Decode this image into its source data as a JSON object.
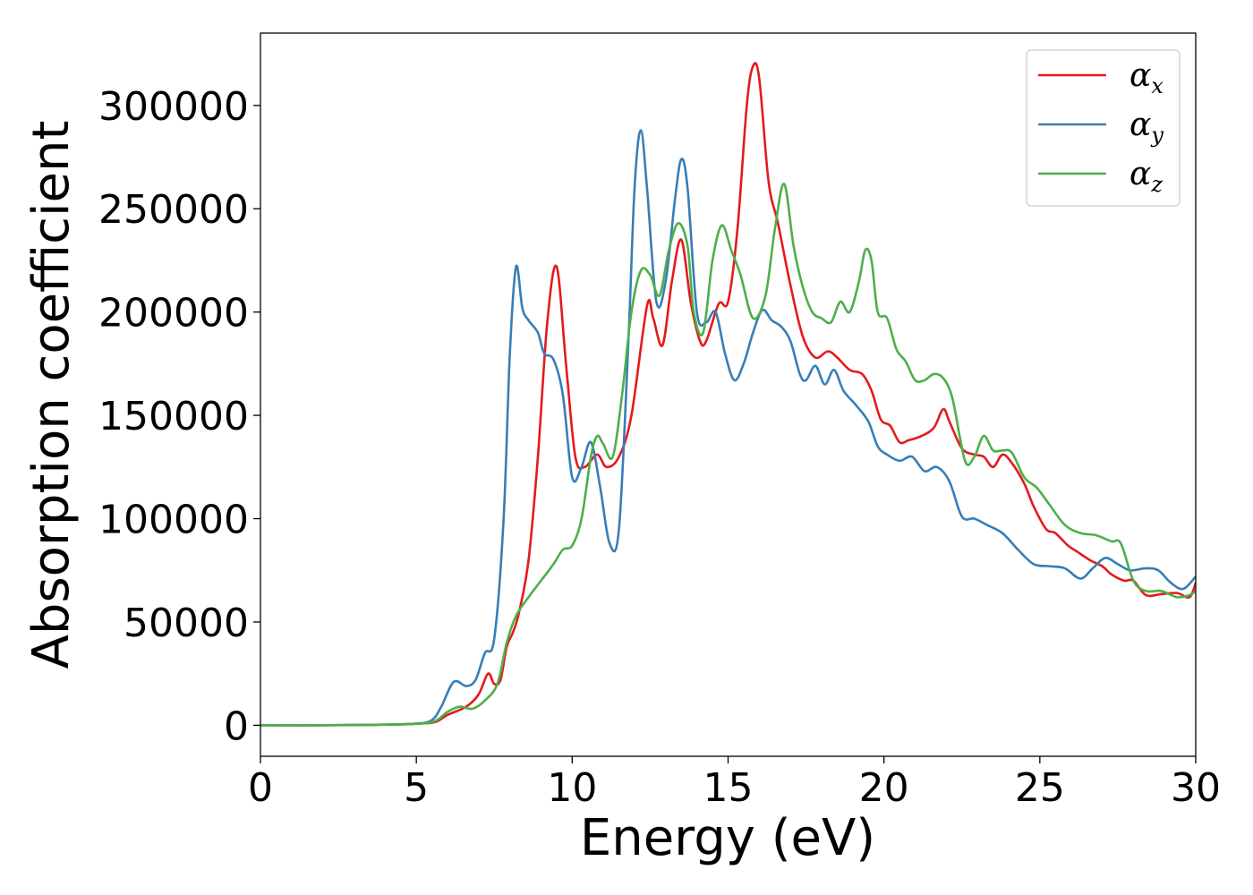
{
  "chart_data": {
    "type": "line",
    "xlabel": "Energy (eV)",
    "ylabel": "Absorption coefficient",
    "xlim": [
      0,
      30
    ],
    "ylim": [
      -15000,
      335000
    ],
    "xticks": [
      0,
      5,
      10,
      15,
      20,
      25,
      30
    ],
    "yticks": [
      0,
      50000,
      100000,
      150000,
      200000,
      250000,
      300000
    ],
    "grid": false,
    "legend_position": "top-right",
    "series": [
      {
        "name": "αx",
        "symbol": "α",
        "subscript": "x",
        "color": "#e41a1c",
        "x": [
          0,
          2,
          4,
          5,
          5.6,
          6,
          6.6,
          7.0,
          7.3,
          7.5,
          7.7,
          7.9,
          8.1,
          8.3,
          8.6,
          8.9,
          9.2,
          9.5,
          9.8,
          10.1,
          10.4,
          10.8,
          11.1,
          11.5,
          11.9,
          12.4,
          12.6,
          12.9,
          13.2,
          13.5,
          13.8,
          14.1,
          14.3,
          14.7,
          15.0,
          15.3,
          15.6,
          15.8,
          16.0,
          16.3,
          16.6,
          17.0,
          17.4,
          17.8,
          18.2,
          18.5,
          18.9,
          19.3,
          19.6,
          19.9,
          20.2,
          20.5,
          20.8,
          21.2,
          21.6,
          21.9,
          22.1,
          22.5,
          22.9,
          23.2,
          23.5,
          23.8,
          24.1,
          24.5,
          24.8,
          25.2,
          25.5,
          25.9,
          26.2,
          26.6,
          27.0,
          27.3,
          27.7,
          28.0,
          28.4,
          28.9,
          29.4,
          29.8,
          30
        ],
        "y": [
          0,
          0,
          300,
          800,
          1500,
          5000,
          9000,
          15000,
          25000,
          20000,
          22000,
          38000,
          45000,
          55000,
          80000,
          130000,
          195000,
          222000,
          175000,
          130000,
          125000,
          131000,
          125000,
          130000,
          150000,
          203000,
          197000,
          184000,
          215000,
          235000,
          205000,
          186000,
          186000,
          204000,
          205000,
          240000,
          300000,
          319000,
          313000,
          263000,
          243000,
          213000,
          188000,
          178000,
          181000,
          178000,
          172000,
          170000,
          162000,
          148000,
          145000,
          137000,
          138000,
          140000,
          144000,
          153000,
          147000,
          134000,
          131000,
          130000,
          125000,
          131000,
          127000,
          117000,
          106000,
          95000,
          93000,
          87000,
          84000,
          80000,
          77000,
          73000,
          70000,
          70000,
          63000,
          63500,
          64000,
          62000,
          69000
        ]
      },
      {
        "name": "αy",
        "symbol": "α",
        "subscript": "y",
        "color": "#377eb8",
        "x": [
          0,
          2,
          4,
          5,
          5.5,
          5.8,
          6.2,
          6.6,
          6.9,
          7.2,
          7.5,
          7.8,
          8.0,
          8.2,
          8.4,
          8.6,
          8.9,
          9.1,
          9.4,
          9.7,
          10.0,
          10.3,
          10.6,
          10.9,
          11.2,
          11.5,
          11.8,
          12.0,
          12.2,
          12.4,
          12.7,
          13.0,
          13.3,
          13.5,
          13.7,
          14.0,
          14.3,
          14.6,
          14.9,
          15.2,
          15.5,
          15.8,
          16.1,
          16.4,
          16.7,
          17.0,
          17.3,
          17.5,
          17.8,
          18.1,
          18.4,
          18.7,
          19.1,
          19.5,
          19.8,
          20.1,
          20.5,
          20.9,
          21.3,
          21.7,
          22.1,
          22.5,
          22.9,
          23.3,
          23.8,
          24.3,
          24.8,
          25.3,
          25.8,
          26.3,
          26.7,
          27.1,
          27.5,
          27.9,
          28.4,
          28.8,
          29.2,
          29.6,
          30
        ],
        "y": [
          0,
          0,
          300,
          800,
          2500,
          9000,
          21000,
          19000,
          22000,
          35000,
          42000,
          100000,
          180000,
          222000,
          202000,
          196000,
          190000,
          180000,
          177000,
          160000,
          120000,
          125000,
          137000,
          115000,
          88000,
          95000,
          185000,
          260000,
          288000,
          260000,
          205000,
          215000,
          255000,
          274000,
          260000,
          200000,
          195000,
          200000,
          180000,
          167000,
          175000,
          190000,
          201000,
          196000,
          193000,
          186000,
          170000,
          167000,
          174000,
          165000,
          172000,
          162000,
          155000,
          147000,
          135000,
          131000,
          128000,
          130000,
          123000,
          125000,
          118000,
          101000,
          100000,
          97000,
          93000,
          85000,
          78000,
          77000,
          76000,
          71000,
          76000,
          81000,
          78000,
          75000,
          76000,
          75000,
          69000,
          66000,
          72000
        ]
      },
      {
        "name": "αz",
        "symbol": "α",
        "subscript": "z",
        "color": "#4daf4a",
        "x": [
          0,
          2,
          4,
          5,
          5.6,
          6.0,
          6.4,
          6.8,
          7.2,
          7.6,
          7.9,
          8.2,
          8.6,
          9.0,
          9.4,
          9.7,
          10.0,
          10.3,
          10.6,
          10.8,
          11.0,
          11.3,
          11.6,
          11.9,
          12.2,
          12.5,
          12.8,
          13.1,
          13.4,
          13.7,
          13.9,
          14.2,
          14.5,
          14.8,
          15.1,
          15.4,
          15.8,
          16.2,
          16.5,
          16.8,
          17.1,
          17.4,
          17.7,
          18.0,
          18.3,
          18.6,
          18.9,
          19.2,
          19.4,
          19.6,
          19.8,
          20.1,
          20.4,
          20.7,
          21.0,
          21.3,
          21.6,
          21.9,
          22.2,
          22.6,
          22.9,
          23.2,
          23.5,
          23.8,
          24.1,
          24.5,
          24.9,
          25.3,
          25.8,
          26.3,
          26.8,
          27.3,
          27.6,
          28.0,
          28.4,
          28.9,
          29.4,
          29.8,
          30
        ],
        "y": [
          0,
          0,
          300,
          700,
          2000,
          6500,
          9000,
          8000,
          12000,
          20000,
          40000,
          53000,
          62000,
          70000,
          78000,
          85000,
          87000,
          100000,
          130000,
          140000,
          136000,
          130000,
          160000,
          200000,
          220000,
          218000,
          208000,
          230000,
          243000,
          232000,
          200000,
          190000,
          225000,
          242000,
          230000,
          218000,
          197000,
          208000,
          240000,
          262000,
          232000,
          212000,
          200000,
          197000,
          195000,
          205000,
          200000,
          215000,
          230000,
          225000,
          200000,
          197000,
          182000,
          176000,
          167000,
          167000,
          170000,
          168000,
          158000,
          128000,
          130000,
          140000,
          133000,
          133000,
          132000,
          120000,
          115000,
          107000,
          97000,
          93000,
          92000,
          89000,
          88000,
          70000,
          65000,
          65000,
          62000,
          63000,
          65000
        ]
      }
    ]
  }
}
